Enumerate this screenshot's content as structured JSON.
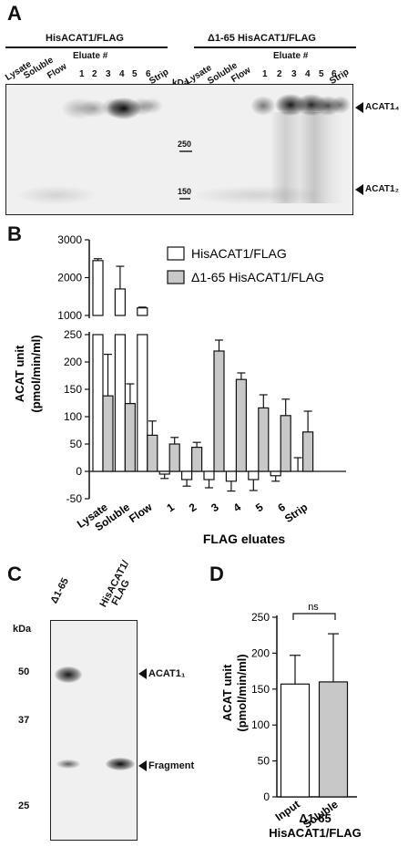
{
  "panels": {
    "a": {
      "letter": "A",
      "group1": "HisACAT1/FLAG",
      "group2": "Δ1-65 HisACAT1/FLAG",
      "eluate_header": "Eluate #",
      "kda_label": "kDa",
      "lanes_left": [
        "Lysate",
        "Soluble",
        "Flow",
        "1",
        "2",
        "3",
        "4",
        "5",
        "6",
        "Strip"
      ],
      "lanes_right": [
        "Lysate",
        "Soluble",
        "Flow",
        "1",
        "2",
        "3",
        "4",
        "5",
        "6",
        "Strip"
      ],
      "marker_250": "250",
      "marker_150": "150",
      "band_label_top": "ACAT1₄",
      "band_label_bottom": "ACAT1₂"
    },
    "b": {
      "letter": "B",
      "ylabel_line1": "ACAT unit",
      "ylabel_line2": "(pmol/min/ml)",
      "xlabel": "FLAG eluates",
      "legend": [
        "HisACAT1/FLAG",
        "Δ1-65 HisACAT1/FLAG"
      ],
      "upper_ticks": [
        "3000",
        "2000",
        "1000"
      ],
      "lower_ticks": [
        "250",
        "200",
        "150",
        "100",
        "50",
        "0",
        "-50"
      ]
    },
    "c": {
      "letter": "C",
      "lane1": "Δ1-65",
      "lane2_line1": "HisACAT1/",
      "lane2_line2": "FLAG",
      "kda_label": "kDa",
      "markers": [
        "50",
        "37",
        "25"
      ],
      "band_label_top": "ACAT1₁",
      "band_label_bottom": "Fragment"
    },
    "d": {
      "letter": "D",
      "ylabel_line1": "ACAT unit",
      "ylabel_line2": "(pmol/min/ml)",
      "xlabel_line1": "Δ1-65",
      "xlabel_line2": "HisACAT1/FLAG",
      "sig": "ns",
      "ticks": [
        "250",
        "200",
        "150",
        "100",
        "50",
        "0"
      ]
    }
  },
  "chart_data": [
    {
      "type": "bar",
      "panel": "B",
      "categories": [
        "Lysate",
        "Soluble",
        "Flow",
        "1",
        "2",
        "3",
        "4",
        "5",
        "6",
        "Strip"
      ],
      "series": [
        {
          "name": "HisACAT1/FLAG",
          "values": [
            2450,
            1700,
            1200,
            -5,
            -15,
            -15,
            -18,
            -15,
            -8,
            0
          ],
          "errors": [
            50,
            600,
            20,
            8,
            12,
            15,
            18,
            20,
            10,
            25
          ],
          "color": "#ffffff"
        },
        {
          "name": "Δ1-65 HisACAT1/FLAG",
          "values": [
            138,
            124,
            66,
            50,
            44,
            220,
            168,
            116,
            102,
            72
          ],
          "errors": [
            76,
            36,
            26,
            12,
            9,
            20,
            12,
            24,
            30,
            38
          ],
          "color": "#c8c8c8"
        }
      ],
      "ylabel": "ACAT unit (pmol/min/ml)",
      "xlabel": "FLAG eluates",
      "ylim_lower": [
        -50,
        250
      ],
      "ylim_upper": [
        1000,
        3000
      ],
      "axis_break": true,
      "legend_position": "top-right"
    },
    {
      "type": "bar",
      "panel": "D",
      "categories": [
        "Input",
        "Soluble"
      ],
      "values": [
        157,
        160
      ],
      "errors": [
        40,
        67
      ],
      "colors": [
        "#ffffff",
        "#c8c8c8"
      ],
      "ylabel": "ACAT unit (pmol/min/ml)",
      "xlabel": "Δ1-65 HisACAT1/FLAG",
      "ylim": [
        0,
        250
      ],
      "annotation": "ns"
    }
  ]
}
